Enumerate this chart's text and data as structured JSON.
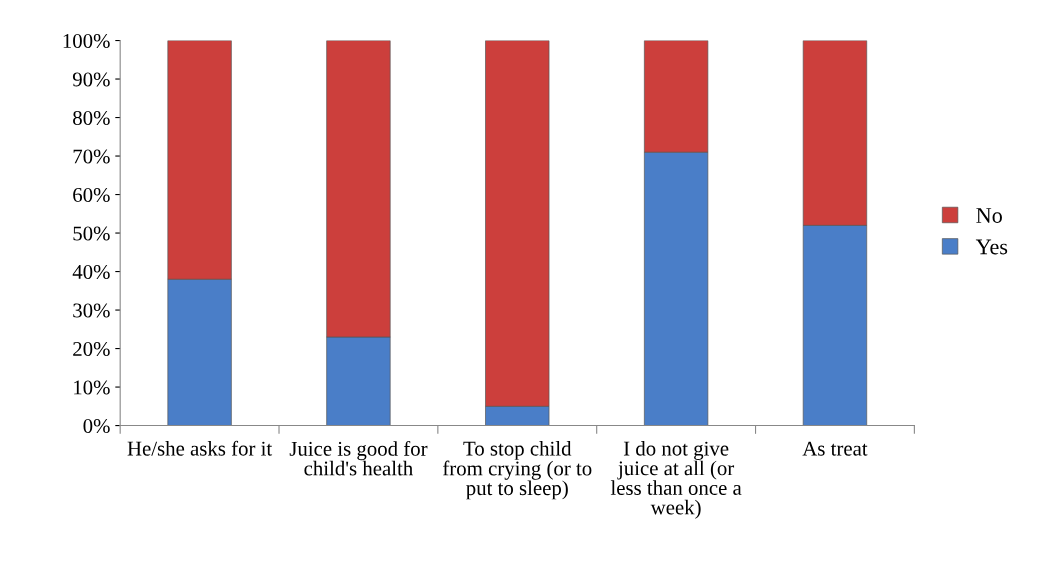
{
  "chart_data": {
    "type": "bar",
    "stacked": true,
    "categories": [
      "He/she asks for it",
      "Juice is good for child's health",
      "To stop child from crying (or to put to sleep)",
      "I do not give juice at all (or less than once a week)",
      "As treat"
    ],
    "series": [
      {
        "name": "Yes",
        "color": "#4a7ec8",
        "values": [
          38,
          23,
          5,
          71,
          52
        ]
      },
      {
        "name": "No",
        "color": "#cc3f3c",
        "values": [
          62,
          77,
          95,
          29,
          48
        ]
      }
    ],
    "ylim": [
      0,
      100
    ],
    "yticks": [
      {
        "value": 0,
        "label": "0%"
      },
      {
        "value": 10,
        "label": "10%"
      },
      {
        "value": 20,
        "label": "20%"
      },
      {
        "value": 30,
        "label": "30%"
      },
      {
        "value": 40,
        "label": "40%"
      },
      {
        "value": 50,
        "label": "50%"
      },
      {
        "value": 60,
        "label": "60%"
      },
      {
        "value": 70,
        "label": "70%"
      },
      {
        "value": 80,
        "label": "80%"
      },
      {
        "value": 90,
        "label": "90%"
      },
      {
        "value": 100,
        "label": "100%"
      }
    ],
    "legend": "right",
    "grid": false
  }
}
